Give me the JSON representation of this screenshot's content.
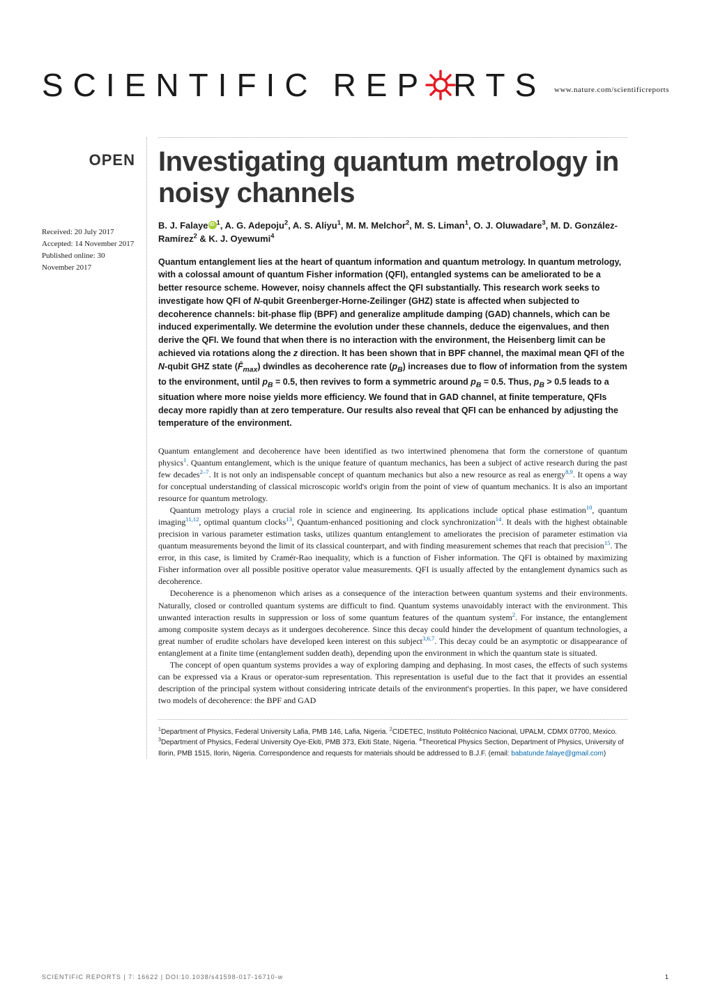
{
  "header": {
    "site": "www.nature.com/scientificreports"
  },
  "logo": {
    "text_left": "SCIENTIFIC",
    "text_right": "RTS",
    "text_mid": "REP"
  },
  "open_badge": "OPEN",
  "dates": {
    "received": "Received: 20 July 2017",
    "accepted": "Accepted: 14 November 2017",
    "published": "Published online: 30 November 2017"
  },
  "title": "Investigating quantum metrology in noisy channels",
  "authors_html": "B. J. Falaye<orcid></orcid><sup>1</sup>, A. G. Adepoju<sup>2</sup>, A. S. Aliyu<sup>1</sup>, M. M. Melchor<sup>2</sup>, M. S. Liman<sup>1</sup>, O. J. Oluwadare<sup>3</sup>, M. D. González-Ramírez<sup>2</sup> & K. J. Oyewumi<sup>4</sup>",
  "abstract_html": "Quantum entanglement lies at the heart of quantum information and quantum metrology. In quantum metrology, with a colossal amount of quantum Fisher information (QFI), entangled systems can be ameliorated to be a better resource scheme. However, noisy channels affect the QFI substantially. This research work seeks to investigate how QFI of <span class='ital'>N</span>-qubit Greenberger-Horne-Zeilinger (GHZ) state is affected when subjected to decoherence channels: bit-phase flip (BPF) and generalize amplitude damping (GAD) channels, which can be induced experimentally. We determine the evolution under these channels, deduce the eigenvalues, and then derive the QFI. We found that when there is no interaction with the environment, the Heisenberg limit can be achieved via rotations along the <span class='ital'>z</span> direction. It has been shown that in BPF channel, the maximal mean QFI of the <span class='ital'>N</span>-qubit GHZ state (<span class='ital'>F̄<sub>max</sub></span>) dwindles as decoherence rate (<span class='ital'>p<sub>B</sub></span>) increases due to flow of information from the system to the environment, until <span class='ital'>p<sub>B</sub></span> = 0.5, then revives to form a symmetric around <span class='ital'>p<sub>B</sub></span> = 0.5. Thus, <span class='ital'>p<sub>B</sub></span> &gt; 0.5 leads to a situation where more noise yields more efficiency. We found that in GAD channel, at finite temperature, QFIs decay more rapidly than at zero temperature. Our results also reveal that QFI can be enhanced by adjusting the temperature of the environment.",
  "body_paragraphs": [
    "Quantum entanglement and decoherence have been identified as two intertwined phenomena that form the cornerstone of quantum physics<span class='sup-ref'>1</span>. Quantum entanglement, which is the unique feature of quantum mechanics, has been a subject of active research during the past few decades<span class='sup-ref'>2–7</span>. It is not only an indispensable concept of quantum mechanics but also a new resource as real as energy<span class='sup-ref'>8,9</span>. It opens a way for conceptual understanding of classical microscopic world's origin from the point of view of quantum mechanics. It is also an important resource for quantum metrology.",
    "Quantum metrology plays a crucial role in science and engineering. Its applications include optical phase estimation<span class='sup-ref'>10</span>, quantum imaging<span class='sup-ref'>11,12</span>, optimal quantum clocks<span class='sup-ref'>13</span>, Quantum-enhanced positioning and clock synchronization<span class='sup-ref'>14</span>. It deals with the highest obtainable precision in various parameter estimation tasks, utilizes quantum entanglement to ameliorates the precision of parameter estimation via quantum measurements beyond the limit of its classical counterpart, and with finding measurement schemes that reach that precision<span class='sup-ref'>15</span>. The error, in this case, is limited by Cramér-Rao inequality, which is a function of Fisher information. The QFI is obtained by maximizing Fisher information over all possible positive operator value measurements. QFI is usually affected by the entanglement dynamics such as decoherence.",
    "Decoherence is a phenomenon which arises as a consequence of the interaction between quantum systems and their environments. Naturally, closed or controlled quantum systems are difficult to find. Quantum systems unavoidably interact with the environment. This unwanted interaction results in suppression or loss of some quantum features of the quantum system<span class='sup-ref'>2</span>. For instance, the entanglement among composite system decays as it undergoes decoherence. Since this decay could hinder the development of quantum technologies, a great number of erudite scholars have developed keen interest on this subject<span class='sup-ref'>3,6,7</span>. This decay could be an asymptotic or disappearance of entanglement at a finite time (entanglement sudden death), depending upon the environment in which the quantum state is situated.",
    "The concept of open quantum systems provides a way of exploring damping and dephasing. In most cases, the effects of such systems can be expressed via a Kraus or operator-sum representation. This representation is useful due to the fact that it provides an essential description of the principal system without considering intricate details of the environment's properties. In this paper, we have considered two models of decoherence: the BPF and GAD"
  ],
  "affiliations_html": "<sup>1</sup>Department of Physics, Federal University Lafia, PMB 146, Lafia, Nigeria. <sup>2</sup>CIDETEC, Instituto Politécnico Nacional, UPALM, CDMX 07700, Mexico. <sup>3</sup>Department of Physics, Federal University Oye-Ekiti, PMB 373, Ekiti State, Nigeria. <sup>4</sup>Theoretical Physics Section, Department of Physics, University of Ilorin, PMB 1515, Ilorin, Nigeria. Correspondence and requests for materials should be addressed to B.J.F. (email: <span class='email-link'>babatunde.falaye@gmail.com</span>)",
  "footer": {
    "left": "SCIENTIFIC REPORTS | 7: 16622 | DOI:10.1038/s41598-017-16710-w",
    "page_num": "1"
  },
  "colors": {
    "gear_red": "#e31b23",
    "link_blue": "#0067ab",
    "orcid_green": "#a6ce39",
    "text_dark": "#1a1a1a",
    "title_grey": "#333333",
    "footer_grey": "#6b6b6b"
  }
}
